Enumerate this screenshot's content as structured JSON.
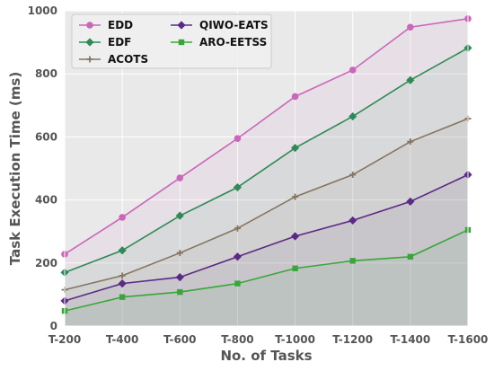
{
  "chart_data": {
    "type": "line",
    "title": "",
    "xlabel": "No. of Tasks",
    "ylabel": "Task Execution Time (ms)",
    "categories": [
      "T-200",
      "T-400",
      "T-600",
      "T-800",
      "T-1000",
      "T-1200",
      "T-1400",
      "T-1600"
    ],
    "ylim": [
      0,
      1000
    ],
    "yticks": [
      0,
      200,
      400,
      600,
      800,
      1000
    ],
    "grid": true,
    "legend_position": "top-left",
    "series": [
      {
        "name": "EDD",
        "values": [
          228,
          345,
          470,
          595,
          728,
          812,
          948,
          975
        ],
        "color": "#cc66bb",
        "marker": "circle"
      },
      {
        "name": "EDF",
        "values": [
          170,
          240,
          350,
          440,
          565,
          665,
          780,
          882
        ],
        "color": "#2e8b57",
        "marker": "diamond"
      },
      {
        "name": "ACOTS",
        "values": [
          115,
          160,
          232,
          310,
          410,
          480,
          585,
          658
        ],
        "color": "#857560",
        "marker": "plus"
      },
      {
        "name": "QIWO-EATS",
        "values": [
          80,
          135,
          155,
          220,
          285,
          335,
          395,
          480
        ],
        "color": "#5b2a86",
        "marker": "diamond"
      },
      {
        "name": "ARO-EETSS",
        "values": [
          48,
          92,
          108,
          135,
          183,
          207,
          220,
          305
        ],
        "color": "#3aa63a",
        "marker": "square"
      }
    ]
  }
}
